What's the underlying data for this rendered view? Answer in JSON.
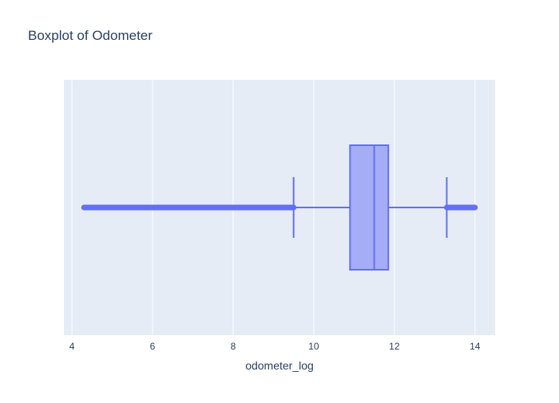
{
  "chart_data": {
    "type": "box",
    "title": "Boxplot of Odometer",
    "xlabel": "odometer_log",
    "ylabel": "",
    "orientation": "horizontal",
    "xlim": [
      3.8,
      14.5
    ],
    "x_ticks": [
      4,
      6,
      8,
      10,
      12,
      14
    ],
    "grid": true,
    "legend": "none",
    "series": [
      {
        "stats": {
          "lower_fence": 9.5,
          "q1": 10.9,
          "median": 11.5,
          "q3": 11.85,
          "upper_fence": 13.3
        },
        "outliers_low_range": [
          4.3,
          9.5
        ],
        "outliers_high_range": [
          13.3,
          14.0
        ]
      }
    ],
    "colors": {
      "box_line": "#636efa",
      "box_fill": "#a6adf7",
      "plot_bg": "#e5ecf6",
      "grid": "#ffffff",
      "text": "#2a3f5f"
    }
  }
}
